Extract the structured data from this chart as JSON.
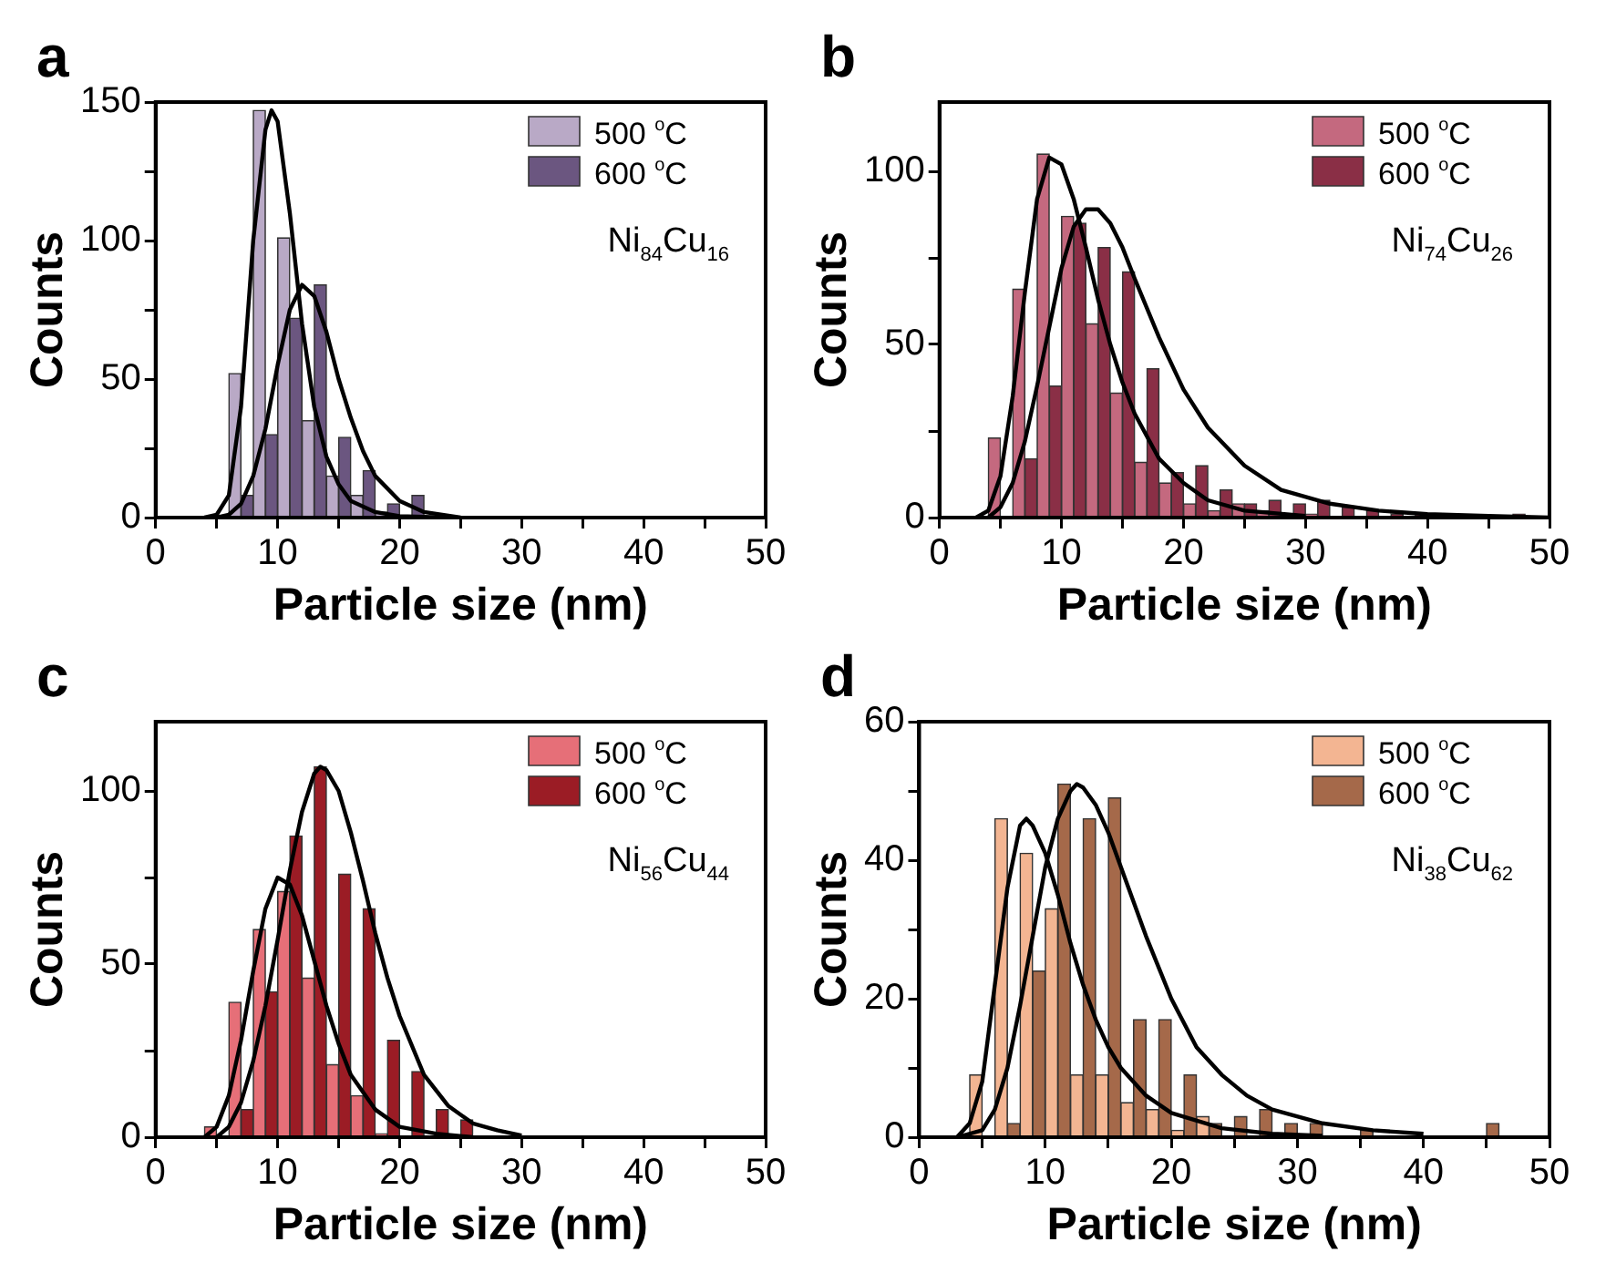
{
  "chart_data": [
    {
      "type": "histogram",
      "xlabel": "Particle size (nm)",
      "ylabel": "Counts",
      "annotations": [
        "a",
        "Ni$_{84}$Cu$_{16}$"
      ],
      "legend": "top right",
      "xlim": [
        0,
        50
      ],
      "xticks": [
        0,
        {
          "value": 5,
          "label": null
        },
        10,
        {
          "value": 15,
          "label": null
        },
        20,
        {
          "value": 25,
          "label": null
        },
        30,
        {
          "value": 35,
          "label": null
        },
        40,
        {
          "value": 45,
          "label": null
        },
        50
      ],
      "ylim": [
        0,
        150
      ],
      "yticks": [
        0,
        {
          "value": 25,
          "label": null
        },
        50,
        {
          "value": 75,
          "label": null
        },
        100,
        {
          "value": 125,
          "label": null
        },
        150
      ],
      "bins": [
        6,
        7,
        8,
        9,
        10,
        11,
        12,
        13,
        14,
        15,
        16,
        17,
        18,
        19,
        20,
        21,
        22
      ],
      "series": [
        {
          "name": "500 $^{o}$C",
          "color": "#b9a9c6",
          "values": [
            52,
            0,
            147,
            0,
            101,
            0,
            35,
            0,
            15,
            0,
            8,
            0,
            2,
            0,
            0,
            0
          ]
        },
        {
          "name": "600 $^{o}$C",
          "color": "#6b5680",
          "values": [
            0,
            8,
            0,
            30,
            0,
            72,
            0,
            84,
            0,
            29,
            0,
            17,
            0,
            5,
            0,
            8
          ]
        },
        {
          "type": "line",
          "color": "#000000",
          "x": [
            4,
            5,
            6,
            7,
            8,
            9,
            9.5,
            10,
            11,
            12,
            13,
            14,
            15,
            16,
            18,
            20,
            24
          ],
          "values": [
            0,
            1,
            8,
            40,
            100,
            140,
            147,
            143,
            110,
            70,
            40,
            22,
            12,
            6,
            2,
            0.5,
            0
          ]
        },
        {
          "type": "line",
          "color": "#000000",
          "x": [
            5,
            6,
            7,
            8,
            9,
            10,
            11,
            12,
            13,
            14,
            15,
            16,
            17,
            18,
            20,
            22,
            25
          ],
          "values": [
            0,
            1,
            5,
            15,
            32,
            55,
            75,
            84,
            80,
            67,
            50,
            36,
            24,
            15,
            6,
            2,
            0
          ]
        }
      ]
    },
    {
      "type": "histogram",
      "xlabel": "Particle size (nm)",
      "ylabel": "Counts",
      "annotations": [
        "b",
        "Ni$_{74}$Cu$_{26}$"
      ],
      "legend": "top right",
      "xlim": [
        0,
        50
      ],
      "xticks": [
        0,
        {
          "value": 5,
          "label": null
        },
        10,
        {
          "value": 15,
          "label": null
        },
        20,
        {
          "value": 25,
          "label": null
        },
        30,
        {
          "value": 35,
          "label": null
        },
        40,
        {
          "value": 45,
          "label": null
        },
        50
      ],
      "ylim": [
        0,
        120
      ],
      "yticks": [
        0,
        {
          "value": 25,
          "label": null
        },
        50,
        {
          "value": 75,
          "label": null
        },
        100
      ],
      "bins": [
        4,
        5,
        6,
        7,
        8,
        9,
        10,
        11,
        12,
        13,
        14,
        15,
        16,
        17,
        18,
        19,
        20,
        21,
        22,
        23,
        24,
        25,
        26,
        27,
        28,
        29,
        30,
        31,
        32,
        33,
        34,
        35,
        36,
        37,
        38,
        39,
        40,
        41,
        42,
        43,
        44,
        45,
        46,
        47,
        48
      ],
      "series": [
        {
          "name": "500 $^{o}$C",
          "color": "#c4697f",
          "values": [
            23,
            0,
            66,
            0,
            105,
            0,
            87,
            0,
            56,
            0,
            36,
            0,
            16,
            0,
            10,
            0,
            4,
            0,
            2,
            0,
            4,
            0,
            2,
            0,
            0,
            0,
            1,
            0,
            0,
            0,
            0,
            0,
            0,
            0,
            0,
            0,
            0,
            0,
            0,
            0,
            0,
            0,
            0,
            0
          ]
        },
        {
          "name": "600 $^{o}$C",
          "color": "#8a2f46",
          "values": [
            0,
            0,
            0,
            17,
            0,
            38,
            0,
            85,
            0,
            78,
            0,
            71,
            0,
            43,
            0,
            13,
            0,
            15,
            0,
            8,
            0,
            4,
            0,
            5,
            0,
            4,
            0,
            5,
            0,
            3,
            0,
            2,
            0,
            1,
            0,
            1,
            0,
            0,
            0,
            0,
            0,
            0,
            0,
            1
          ]
        },
        {
          "type": "line",
          "color": "#000000",
          "x": [
            3,
            4,
            5,
            6,
            7,
            8,
            9,
            10,
            11,
            12,
            13,
            14,
            15,
            16,
            18,
            20,
            22,
            25,
            30
          ],
          "values": [
            0,
            2,
            12,
            35,
            65,
            92,
            104,
            102,
            92,
            78,
            63,
            50,
            39,
            30,
            17,
            10,
            5,
            2,
            0.5
          ]
        },
        {
          "type": "line",
          "color": "#000000",
          "x": [
            4,
            5,
            6,
            7,
            8,
            9,
            10,
            11,
            12,
            13,
            14,
            15,
            16,
            18,
            20,
            22,
            25,
            28,
            32,
            36,
            40,
            45,
            50
          ],
          "values": [
            0,
            3,
            10,
            22,
            38,
            55,
            72,
            84,
            89,
            89,
            85,
            78,
            69,
            52,
            37,
            26,
            15,
            8,
            4,
            2,
            1,
            0.5,
            0
          ]
        }
      ]
    },
    {
      "type": "histogram",
      "xlabel": "Particle size (nm)",
      "ylabel": "Counts",
      "annotations": [
        "c",
        "Ni$_{56}$Cu$_{44}$"
      ],
      "legend": "top right",
      "xlim": [
        0,
        50
      ],
      "xticks": [
        0,
        {
          "value": 5,
          "label": null
        },
        10,
        {
          "value": 15,
          "label": null
        },
        20,
        {
          "value": 25,
          "label": null
        },
        30,
        {
          "value": 35,
          "label": null
        },
        40,
        {
          "value": 45,
          "label": null
        },
        50
      ],
      "ylim": [
        0,
        120
      ],
      "yticks": [
        0,
        {
          "value": 25,
          "label": null
        },
        50,
        {
          "value": 75,
          "label": null
        },
        100
      ],
      "bins": [
        4,
        5,
        6,
        7,
        8,
        9,
        10,
        11,
        12,
        13,
        14,
        15,
        16,
        17,
        18,
        19,
        20,
        21,
        22,
        23,
        24,
        25,
        26
      ],
      "series": [
        {
          "name": "500 $^{o}$C",
          "color": "#e66f78",
          "values": [
            3,
            0,
            39,
            0,
            60,
            0,
            71,
            0,
            46,
            0,
            21,
            0,
            12,
            0,
            1,
            0,
            0,
            0,
            0,
            0,
            0,
            0
          ]
        },
        {
          "name": "600 $^{o}$C",
          "color": "#9b1c25",
          "values": [
            0,
            0,
            0,
            8,
            0,
            42,
            0,
            87,
            0,
            107,
            0,
            76,
            0,
            66,
            0,
            28,
            0,
            19,
            0,
            8,
            0,
            5
          ]
        },
        {
          "type": "line",
          "color": "#000000",
          "x": [
            4,
            5,
            6,
            7,
            8,
            9,
            10,
            11,
            12,
            13,
            14,
            15,
            16,
            18,
            20,
            23,
            26
          ],
          "values": [
            0,
            3,
            12,
            28,
            48,
            66,
            75,
            73,
            64,
            51,
            38,
            27,
            18,
            8,
            3,
            1,
            0
          ]
        },
        {
          "type": "line",
          "color": "#000000",
          "x": [
            5,
            6,
            7,
            8,
            9,
            10,
            11,
            12,
            13,
            13.5,
            14,
            15,
            16,
            17,
            18,
            19,
            20,
            22,
            24,
            26,
            28,
            30
          ],
          "values": [
            0,
            3,
            10,
            22,
            38,
            57,
            77,
            94,
            105,
            107,
            106,
            100,
            88,
            74,
            59,
            46,
            35,
            18,
            9,
            4,
            2,
            0.5
          ]
        }
      ]
    },
    {
      "type": "histogram",
      "xlabel": "Particle size (nm)",
      "ylabel": "Counts",
      "annotations": [
        "d",
        "Ni$_{38}$Cu$_{62}$"
      ],
      "legend": "top right",
      "xlim": [
        0,
        50
      ],
      "xticks": [
        0,
        {
          "value": 5,
          "label": null
        },
        10,
        {
          "value": 15,
          "label": null
        },
        20,
        {
          "value": 25,
          "label": null
        },
        30,
        {
          "value": 35,
          "label": null
        },
        40,
        {
          "value": 45,
          "label": null
        },
        50
      ],
      "ylim": [
        0,
        60
      ],
      "yticks": [
        0,
        {
          "value": 10,
          "label": null
        },
        20,
        {
          "value": 30,
          "label": null
        },
        40,
        {
          "value": 50,
          "label": null
        },
        60
      ],
      "bins": [
        4,
        5,
        6,
        7,
        8,
        9,
        10,
        11,
        12,
        13,
        14,
        15,
        16,
        17,
        18,
        19,
        20,
        21,
        22,
        23,
        24,
        25,
        26,
        27,
        28,
        29,
        30,
        31,
        32,
        33,
        34,
        35,
        36,
        37,
        38,
        39,
        40,
        41,
        42,
        43,
        44,
        45,
        46
      ],
      "series": [
        {
          "name": "500 $^{o}$C",
          "color": "#f3b592",
          "values": [
            9,
            0,
            46,
            0,
            41,
            0,
            33,
            0,
            9,
            0,
            9,
            0,
            5,
            0,
            4,
            0,
            1,
            0,
            3,
            0,
            0,
            0,
            0,
            0,
            0,
            0,
            0,
            0,
            0,
            0,
            0,
            0,
            0,
            0,
            0,
            0,
            0,
            0,
            0,
            0,
            0,
            0
          ]
        },
        {
          "name": "600 $^{o}$C",
          "color": "#a5694a",
          "values": [
            0,
            0,
            0,
            2,
            0,
            24,
            0,
            51,
            0,
            46,
            0,
            49,
            0,
            17,
            0,
            17,
            0,
            9,
            0,
            2,
            0,
            3,
            0,
            4,
            0,
            2,
            0,
            2,
            0,
            0,
            0,
            1,
            0,
            0,
            0,
            0,
            0,
            0,
            0,
            0,
            0,
            2
          ]
        },
        {
          "type": "line",
          "color": "#000000",
          "x": [
            3,
            4,
            5,
            6,
            7,
            8,
            8.5,
            9,
            10,
            11,
            12,
            13,
            14,
            15,
            16,
            18,
            20,
            24,
            28,
            32
          ],
          "values": [
            0,
            2,
            8,
            22,
            36,
            45,
            46,
            45,
            41,
            35,
            28,
            22,
            17,
            13,
            10,
            6,
            3.5,
            1.3,
            0.5,
            0.2
          ]
        },
        {
          "type": "line",
          "color": "#000000",
          "x": [
            3,
            5,
            6,
            7,
            8,
            9,
            10,
            11,
            12,
            12.5,
            13,
            14,
            15,
            16,
            17,
            18,
            20,
            22,
            24,
            26,
            28,
            32,
            36,
            40
          ],
          "values": [
            0,
            1,
            4,
            10,
            19,
            29,
            39,
            46,
            50,
            51,
            50.5,
            48,
            44,
            39,
            34,
            29,
            20,
            13,
            9,
            6,
            4,
            2,
            1,
            0.5
          ]
        }
      ]
    }
  ]
}
